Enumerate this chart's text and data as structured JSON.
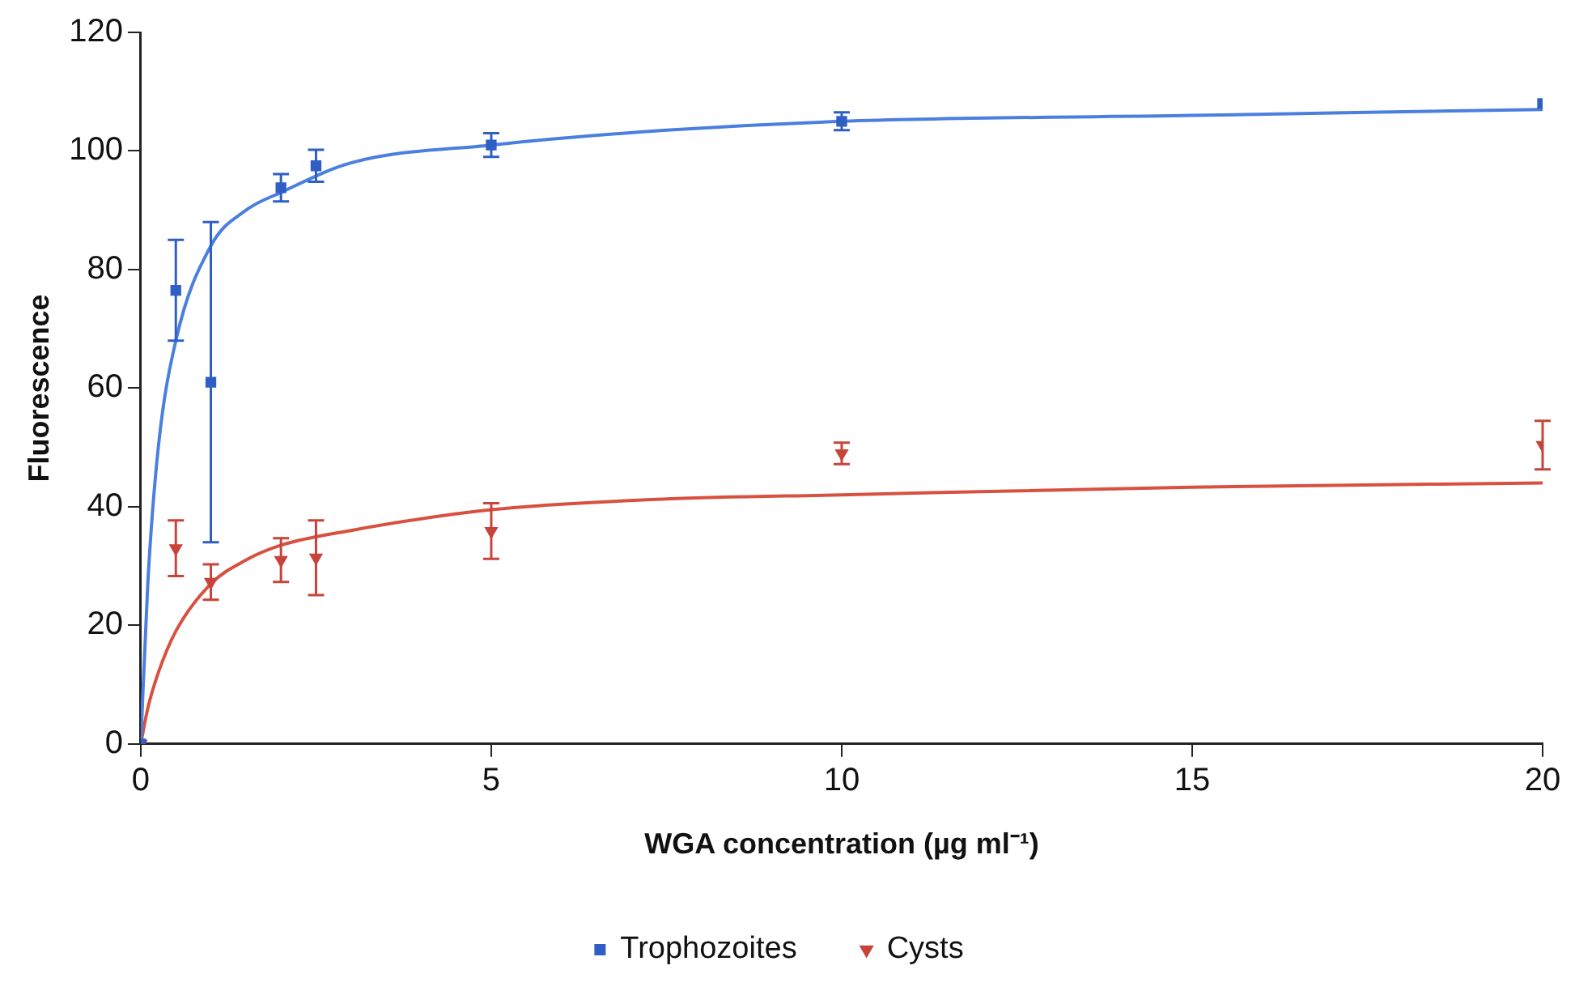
{
  "chart_data": {
    "type": "scatter",
    "xlabel": "WGA concentration (µg ml⁻¹)",
    "ylabel": "Fluorescence",
    "xlim": [
      0,
      20
    ],
    "xticks": [
      0,
      5,
      10,
      15,
      20
    ],
    "ylim": [
      0,
      120
    ],
    "yticks": [
      0,
      20,
      40,
      60,
      80,
      100,
      120
    ],
    "grid": false,
    "legend": "bottom",
    "series": [
      {
        "name": "Trophozoites",
        "marker": "square",
        "color": "#2f5fc4",
        "x": [
          0,
          0.5,
          1,
          2,
          2.5,
          5,
          10,
          20
        ],
        "values": [
          0,
          76.5,
          61,
          93.8,
          97.5,
          101,
          105,
          108
        ],
        "errors": [
          null,
          8.5,
          27,
          2.3,
          2.7,
          2,
          1.5,
          null
        ]
      },
      {
        "name": "Cysts",
        "marker": "triangle",
        "color": "#c8443a",
        "x": [
          0,
          0.5,
          1,
          2,
          2.5,
          5,
          10,
          20
        ],
        "values": [
          0,
          33,
          27.3,
          31,
          31.4,
          35.9,
          49,
          50.4
        ],
        "errors": [
          null,
          4.7,
          3,
          3.7,
          6.3,
          4.7,
          1.8,
          4.1
        ]
      },
      {
        "type": "line",
        "marker": "none",
        "color": "#4a7fe0",
        "x": [
          0,
          0.1,
          0.25,
          0.5,
          1,
          1.5,
          2,
          3,
          5,
          7.5,
          10,
          15,
          20
        ],
        "values": [
          0,
          27,
          50,
          68,
          84,
          90,
          93,
          98,
          101,
          103.5,
          105,
          106,
          107
        ]
      },
      {
        "type": "line",
        "marker": "none",
        "color": "#d8503f",
        "x": [
          0,
          0.1,
          0.25,
          0.5,
          1,
          1.5,
          2,
          3,
          5,
          7.5,
          10,
          15,
          20
        ],
        "values": [
          0,
          6,
          12,
          19,
          27,
          31,
          33.5,
          36,
          39.5,
          41.3,
          42,
          43.3,
          44
        ]
      }
    ]
  }
}
